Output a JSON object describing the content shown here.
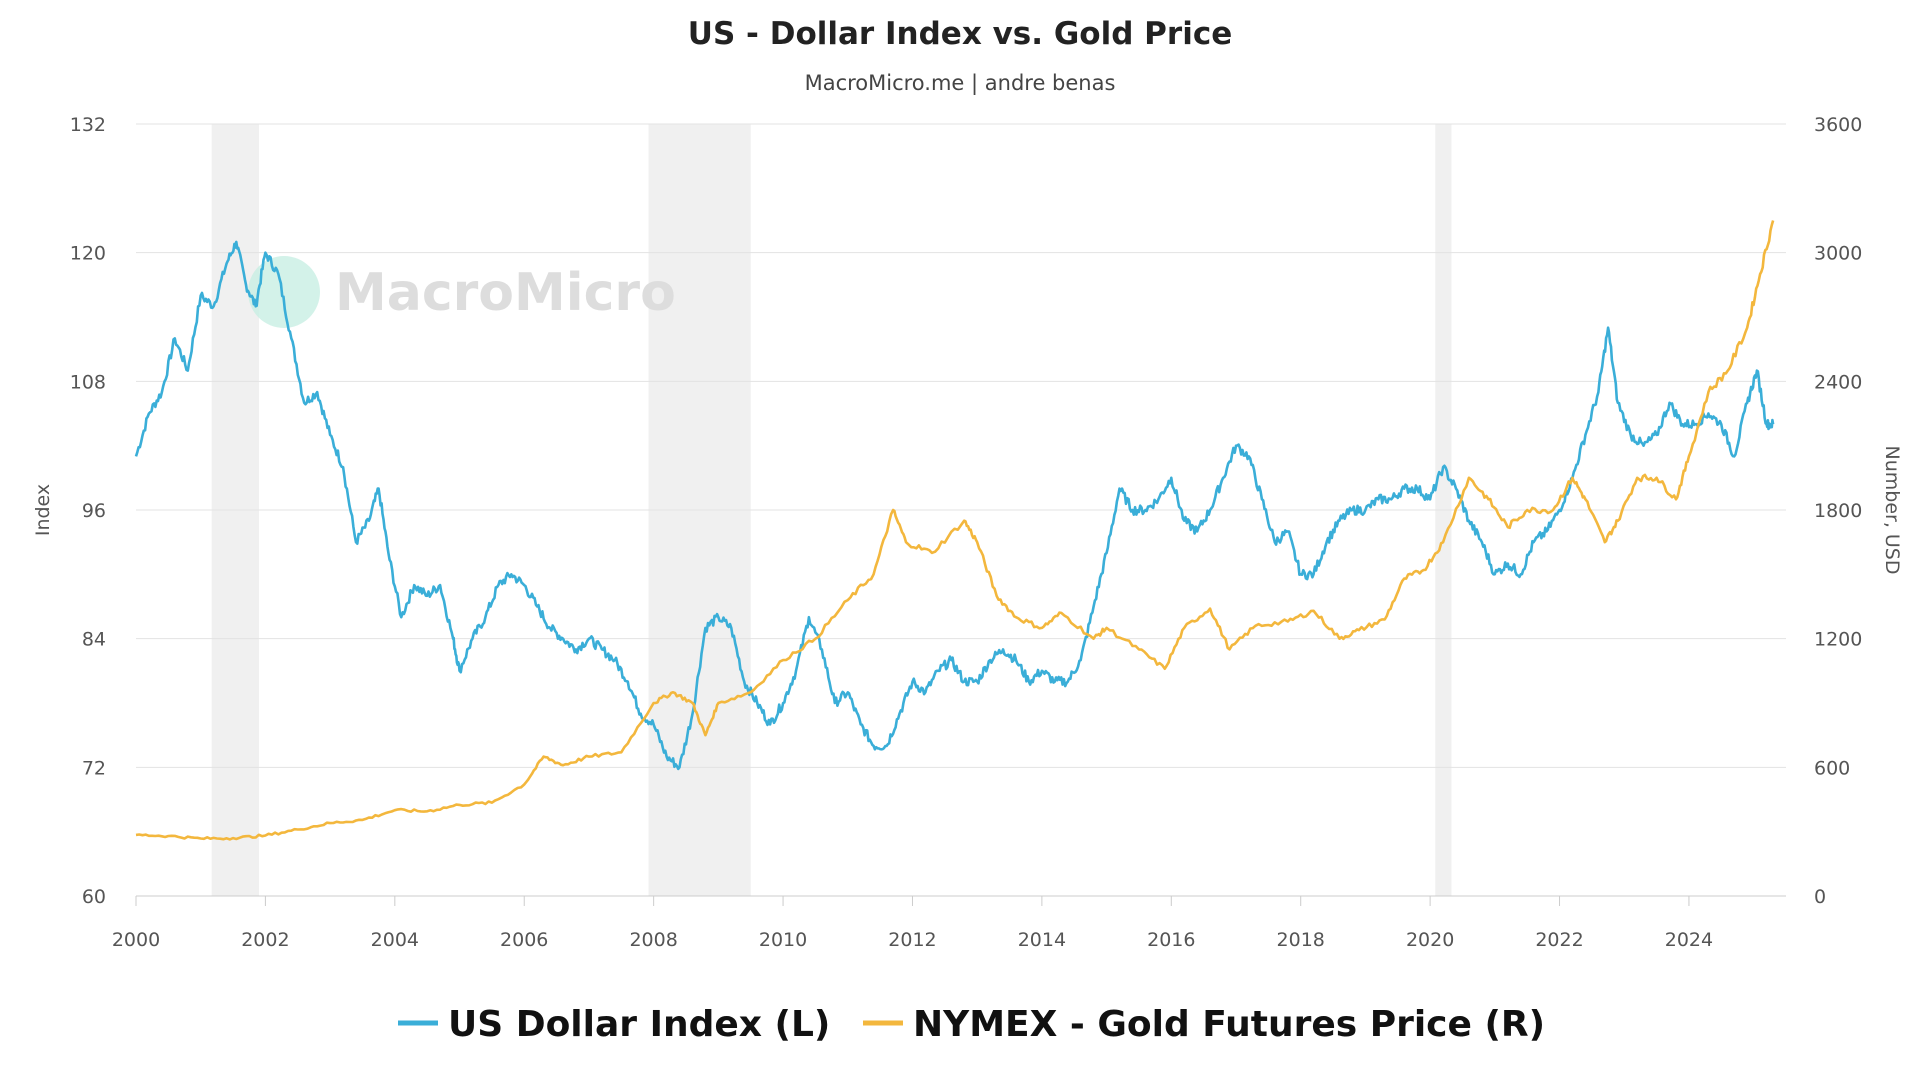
{
  "chart_data": {
    "type": "line",
    "title": "US - Dollar Index vs. Gold Price",
    "subtitle": "MacroMicro.me | andre benas",
    "watermark": "MacroMicro",
    "x_axis": {
      "ticks": [
        "2000",
        "2002",
        "2004",
        "2006",
        "2008",
        "2010",
        "2012",
        "2014",
        "2016",
        "2018",
        "2020",
        "2022",
        "2024"
      ],
      "range": [
        2000,
        2025.5
      ]
    },
    "y_left": {
      "label": "Index",
      "range": [
        60,
        132
      ],
      "ticks": [
        "60",
        "72",
        "84",
        "96",
        "108",
        "120",
        "132"
      ]
    },
    "y_right": {
      "label": "Number, USD",
      "range": [
        0,
        3600
      ],
      "ticks": [
        "0",
        "600",
        "1200",
        "1800",
        "2400",
        "3000",
        "3600"
      ]
    },
    "recession_bands": [
      [
        2001.17,
        2001.9
      ],
      [
        2007.92,
        2009.5
      ],
      [
        2020.08,
        2020.33
      ]
    ],
    "grid": true,
    "legend_position": "bottom",
    "series": [
      {
        "name": "US Dollar Index (L)",
        "axis": "left",
        "color": "#3aaed8",
        "points": [
          [
            2000.0,
            101
          ],
          [
            2000.2,
            105
          ],
          [
            2000.4,
            107
          ],
          [
            2000.6,
            112
          ],
          [
            2000.8,
            109
          ],
          [
            2001.0,
            116
          ],
          [
            2001.2,
            115
          ],
          [
            2001.4,
            119
          ],
          [
            2001.55,
            121
          ],
          [
            2001.7,
            117
          ],
          [
            2001.85,
            115
          ],
          [
            2002.0,
            120
          ],
          [
            2002.2,
            118
          ],
          [
            2002.4,
            112
          ],
          [
            2002.6,
            106
          ],
          [
            2002.8,
            107
          ],
          [
            2003.0,
            103
          ],
          [
            2003.2,
            100
          ],
          [
            2003.4,
            93
          ],
          [
            2003.6,
            95
          ],
          [
            2003.75,
            98
          ],
          [
            2003.9,
            92
          ],
          [
            2004.1,
            86
          ],
          [
            2004.3,
            89
          ],
          [
            2004.5,
            88
          ],
          [
            2004.7,
            89
          ],
          [
            2004.9,
            84
          ],
          [
            2005.0,
            81
          ],
          [
            2005.2,
            84
          ],
          [
            2005.4,
            86
          ],
          [
            2005.6,
            89
          ],
          [
            2005.8,
            90
          ],
          [
            2006.0,
            89
          ],
          [
            2006.2,
            87
          ],
          [
            2006.4,
            85
          ],
          [
            2006.6,
            84
          ],
          [
            2006.8,
            83
          ],
          [
            2007.0,
            84
          ],
          [
            2007.2,
            83
          ],
          [
            2007.4,
            82
          ],
          [
            2007.6,
            80
          ],
          [
            2007.8,
            77
          ],
          [
            2008.0,
            76
          ],
          [
            2008.2,
            73
          ],
          [
            2008.4,
            72
          ],
          [
            2008.6,
            77
          ],
          [
            2008.8,
            85
          ],
          [
            2009.0,
            86
          ],
          [
            2009.2,
            85
          ],
          [
            2009.4,
            80
          ],
          [
            2009.6,
            78
          ],
          [
            2009.8,
            76
          ],
          [
            2010.0,
            78
          ],
          [
            2010.2,
            81
          ],
          [
            2010.4,
            86
          ],
          [
            2010.6,
            83
          ],
          [
            2010.8,
            78
          ],
          [
            2011.0,
            79
          ],
          [
            2011.2,
            76
          ],
          [
            2011.4,
            74
          ],
          [
            2011.6,
            74
          ],
          [
            2011.8,
            77
          ],
          [
            2012.0,
            80
          ],
          [
            2012.2,
            79
          ],
          [
            2012.4,
            81
          ],
          [
            2012.6,
            82
          ],
          [
            2012.8,
            80
          ],
          [
            2013.0,
            80
          ],
          [
            2013.2,
            82
          ],
          [
            2013.4,
            83
          ],
          [
            2013.6,
            82
          ],
          [
            2013.8,
            80
          ],
          [
            2014.0,
            81
          ],
          [
            2014.2,
            80
          ],
          [
            2014.4,
            80
          ],
          [
            2014.6,
            82
          ],
          [
            2014.8,
            87
          ],
          [
            2015.0,
            92
          ],
          [
            2015.2,
            98
          ],
          [
            2015.4,
            96
          ],
          [
            2015.6,
            96
          ],
          [
            2015.8,
            97
          ],
          [
            2016.0,
            99
          ],
          [
            2016.2,
            95
          ],
          [
            2016.4,
            94
          ],
          [
            2016.6,
            96
          ],
          [
            2016.8,
            99
          ],
          [
            2017.0,
            102
          ],
          [
            2017.2,
            101
          ],
          [
            2017.4,
            97
          ],
          [
            2017.6,
            93
          ],
          [
            2017.8,
            94
          ],
          [
            2018.0,
            90
          ],
          [
            2018.2,
            90
          ],
          [
            2018.4,
            93
          ],
          [
            2018.6,
            95
          ],
          [
            2018.8,
            96
          ],
          [
            2019.0,
            96
          ],
          [
            2019.2,
            97
          ],
          [
            2019.4,
            97
          ],
          [
            2019.6,
            98
          ],
          [
            2019.8,
            98
          ],
          [
            2020.0,
            97
          ],
          [
            2020.2,
            100
          ],
          [
            2020.4,
            98
          ],
          [
            2020.6,
            95
          ],
          [
            2020.8,
            93
          ],
          [
            2021.0,
            90
          ],
          [
            2021.2,
            91
          ],
          [
            2021.4,
            90
          ],
          [
            2021.6,
            93
          ],
          [
            2021.8,
            94
          ],
          [
            2022.0,
            96
          ],
          [
            2022.2,
            99
          ],
          [
            2022.4,
            103
          ],
          [
            2022.6,
            107
          ],
          [
            2022.75,
            113
          ],
          [
            2022.9,
            106
          ],
          [
            2023.1,
            103
          ],
          [
            2023.3,
            102
          ],
          [
            2023.5,
            103
          ],
          [
            2023.7,
            106
          ],
          [
            2023.9,
            104
          ],
          [
            2024.1,
            104
          ],
          [
            2024.3,
            105
          ],
          [
            2024.5,
            104
          ],
          [
            2024.7,
            101
          ],
          [
            2024.9,
            106
          ],
          [
            2025.05,
            109
          ],
          [
            2025.2,
            104
          ],
          [
            2025.3,
            104
          ]
        ]
      },
      {
        "name": "NYMEX - Gold Futures Price (R)",
        "axis": "right",
        "color": "#f3b73d",
        "points": [
          [
            2000.0,
            285
          ],
          [
            2000.5,
            280
          ],
          [
            2001.0,
            268
          ],
          [
            2001.5,
            270
          ],
          [
            2002.0,
            282
          ],
          [
            2002.5,
            310
          ],
          [
            2003.0,
            340
          ],
          [
            2003.5,
            355
          ],
          [
            2004.0,
            400
          ],
          [
            2004.5,
            395
          ],
          [
            2005.0,
            425
          ],
          [
            2005.5,
            435
          ],
          [
            2006.0,
            520
          ],
          [
            2006.3,
            650
          ],
          [
            2006.6,
            610
          ],
          [
            2007.0,
            650
          ],
          [
            2007.5,
            670
          ],
          [
            2008.0,
            900
          ],
          [
            2008.3,
            950
          ],
          [
            2008.6,
            900
          ],
          [
            2008.8,
            750
          ],
          [
            2009.0,
            900
          ],
          [
            2009.5,
            950
          ],
          [
            2010.0,
            1100
          ],
          [
            2010.5,
            1200
          ],
          [
            2011.0,
            1380
          ],
          [
            2011.4,
            1500
          ],
          [
            2011.7,
            1800
          ],
          [
            2011.9,
            1650
          ],
          [
            2012.3,
            1600
          ],
          [
            2012.8,
            1750
          ],
          [
            2013.0,
            1650
          ],
          [
            2013.3,
            1400
          ],
          [
            2013.6,
            1300
          ],
          [
            2014.0,
            1250
          ],
          [
            2014.3,
            1320
          ],
          [
            2014.8,
            1200
          ],
          [
            2015.0,
            1250
          ],
          [
            2015.5,
            1150
          ],
          [
            2015.9,
            1060
          ],
          [
            2016.2,
            1250
          ],
          [
            2016.6,
            1340
          ],
          [
            2016.9,
            1150
          ],
          [
            2017.3,
            1260
          ],
          [
            2017.8,
            1280
          ],
          [
            2018.2,
            1330
          ],
          [
            2018.6,
            1200
          ],
          [
            2018.9,
            1240
          ],
          [
            2019.3,
            1290
          ],
          [
            2019.6,
            1480
          ],
          [
            2019.9,
            1520
          ],
          [
            2020.2,
            1650
          ],
          [
            2020.6,
            1950
          ],
          [
            2020.9,
            1850
          ],
          [
            2021.2,
            1720
          ],
          [
            2021.5,
            1800
          ],
          [
            2021.9,
            1800
          ],
          [
            2022.2,
            1950
          ],
          [
            2022.4,
            1850
          ],
          [
            2022.7,
            1650
          ],
          [
            2022.9,
            1750
          ],
          [
            2023.2,
            1950
          ],
          [
            2023.5,
            1950
          ],
          [
            2023.8,
            1850
          ],
          [
            2024.0,
            2050
          ],
          [
            2024.3,
            2350
          ],
          [
            2024.6,
            2450
          ],
          [
            2024.9,
            2650
          ],
          [
            2025.1,
            2900
          ],
          [
            2025.3,
            3150
          ]
        ]
      }
    ]
  }
}
